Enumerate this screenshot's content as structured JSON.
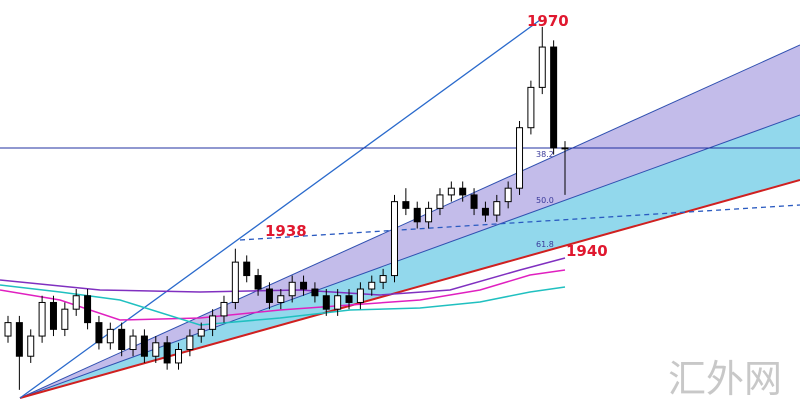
{
  "chart_data": {
    "type": "candlestick",
    "ylim": [
      1913,
      1974
    ],
    "up_color": "#ffffff",
    "down_color": "#000000",
    "series": [
      {
        "open": [
          1924,
          1926,
          1921,
          1924,
          1929,
          1925,
          1928,
          1930,
          1926,
          1923,
          1925,
          1922,
          1924,
          1921,
          1923,
          1920,
          1922,
          1924,
          1925,
          1927,
          1929,
          1935,
          1933,
          1931,
          1929,
          1930,
          1932,
          1931,
          1930,
          1928,
          1930,
          1929,
          1931,
          1932,
          1933,
          1944,
          1943,
          1941,
          1943,
          1945,
          1946,
          1945,
          1943,
          1942,
          1944,
          1946,
          1955,
          1961,
          1967,
          1952
        ],
        "high": [
          1927,
          1927,
          1925,
          1930,
          1930,
          1929,
          1931,
          1931,
          1927,
          1926,
          1926,
          1925,
          1925,
          1924,
          1924,
          1923,
          1925,
          1926,
          1928,
          1930,
          1937,
          1936,
          1934,
          1932,
          1931,
          1933,
          1933,
          1932,
          1931,
          1931,
          1931,
          1932,
          1933,
          1934,
          1945,
          1946,
          1944,
          1944,
          1946,
          1947,
          1947,
          1946,
          1944,
          1945,
          1947,
          1956,
          1962,
          1970,
          1968,
          1953
        ],
        "low": [
          1923,
          1916,
          1920,
          1923,
          1924,
          1924,
          1927,
          1925,
          1922,
          1922,
          1921,
          1921,
          1920,
          1920,
          1919,
          1919,
          1921,
          1923,
          1924,
          1926,
          1928,
          1932,
          1930,
          1928,
          1928,
          1929,
          1930,
          1929,
          1927,
          1927,
          1928,
          1928,
          1930,
          1931,
          1932,
          1942,
          1940,
          1940,
          1942,
          1944,
          1944,
          1942,
          1941,
          1941,
          1943,
          1945,
          1954,
          1960,
          1951,
          1945
        ],
        "close": [
          1926,
          1921,
          1924,
          1929,
          1925,
          1928,
          1930,
          1926,
          1923,
          1925,
          1922,
          1924,
          1921,
          1923,
          1920,
          1922,
          1924,
          1925,
          1927,
          1929,
          1935,
          1933,
          1931,
          1929,
          1930,
          1932,
          1931,
          1930,
          1928,
          1930,
          1929,
          1931,
          1932,
          1933,
          1944,
          1943,
          1941,
          1943,
          1945,
          1946,
          1945,
          1943,
          1942,
          1944,
          1946,
          1955,
          1961,
          1967,
          1952,
          1952
        ]
      }
    ],
    "annotations": [
      "1970",
      "1938",
      "1940",
      "38.2",
      "50.0",
      "61.8"
    ],
    "watermark": "汇外网"
  }
}
